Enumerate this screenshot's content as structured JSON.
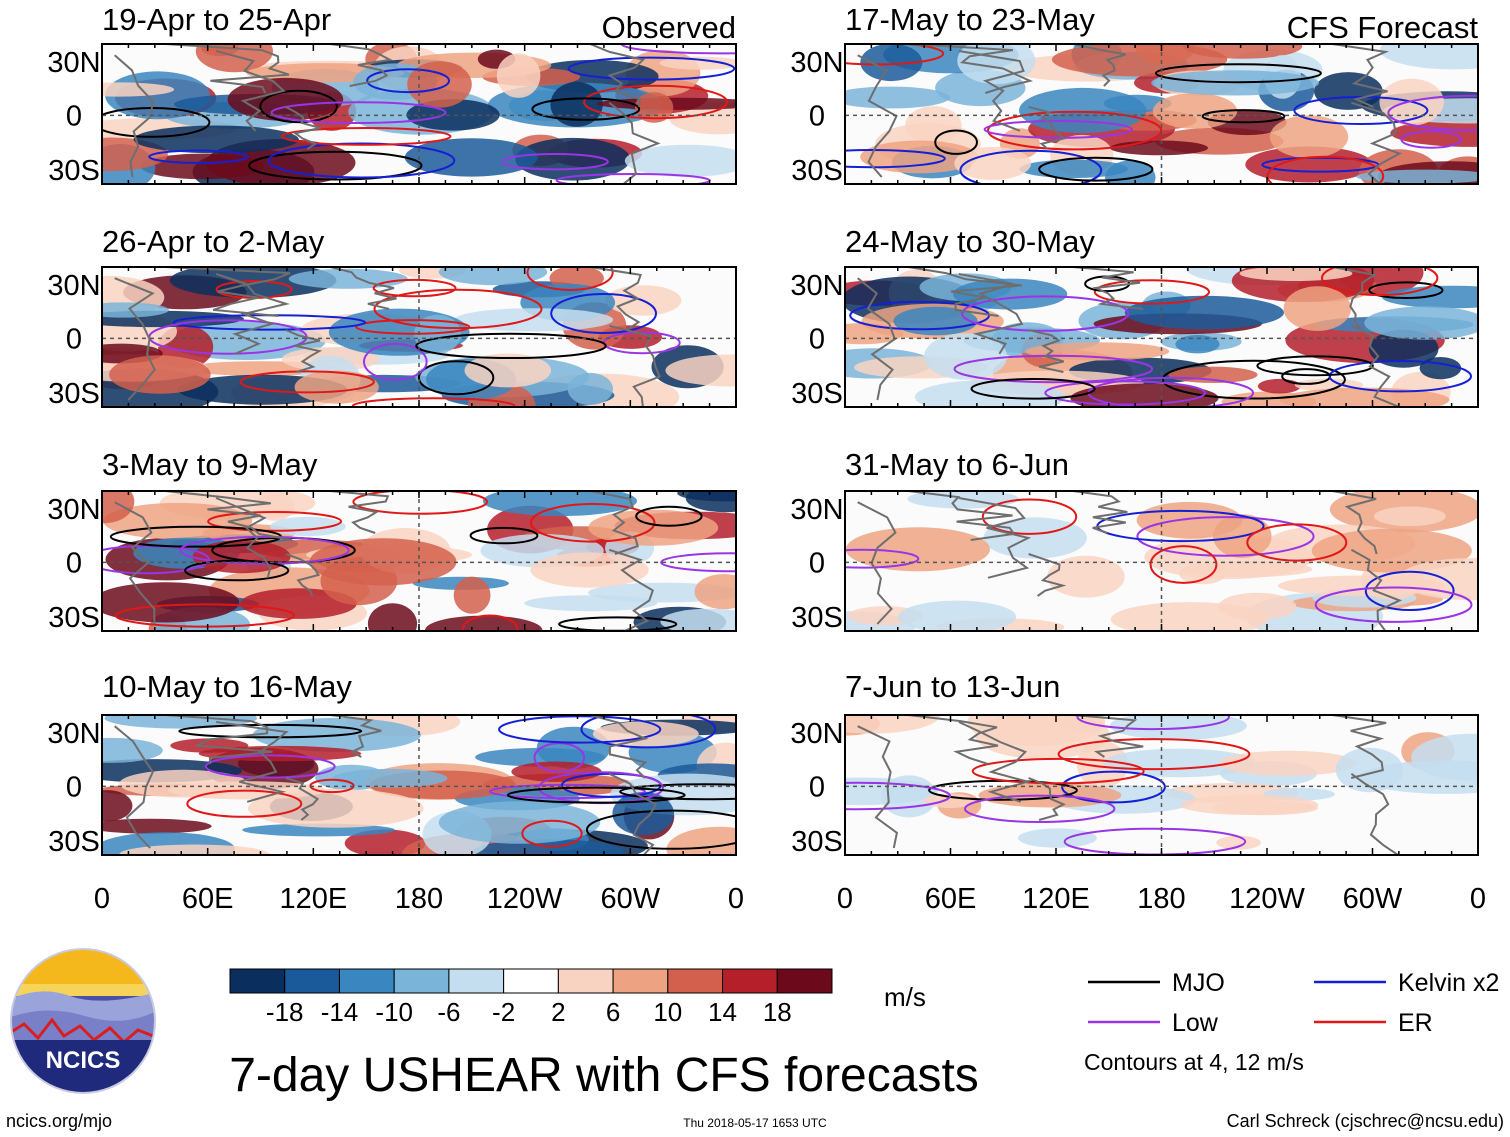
{
  "chart_data": {
    "type": "heatmap",
    "title": "7-day USHEAR with CFS forecasts",
    "variable": "USHEAR",
    "units": "m/s",
    "contour_note": "Contours at 4, 12 m/s",
    "columns": [
      {
        "label": "Observed",
        "panels": [
          {
            "period": "19-Apr to 25-Apr"
          },
          {
            "period": "26-Apr to 2-May"
          },
          {
            "period": "3-May to 9-May"
          },
          {
            "period": "10-May to 16-May"
          }
        ]
      },
      {
        "label": "CFS Forecast",
        "panels": [
          {
            "period": "17-May to 23-May"
          },
          {
            "period": "24-May to 30-May"
          },
          {
            "period": "31-May to 6-Jun"
          },
          {
            "period": "7-Jun to 13-Jun"
          }
        ]
      }
    ],
    "y_ticks": [
      "30N",
      "0",
      "30S"
    ],
    "x_ticks": [
      "0",
      "60E",
      "120E",
      "180",
      "120W",
      "60W",
      "0"
    ],
    "colorbar": {
      "levels": [
        "-18",
        "-14",
        "-10",
        "-6",
        "-2",
        "2",
        "6",
        "10",
        "14",
        "18"
      ],
      "colors": [
        "#0a2f5e",
        "#1b5a9a",
        "#3a86c0",
        "#7ab4d9",
        "#c4def0",
        "#ffffff",
        "#f9d3c2",
        "#eda382",
        "#d3604c",
        "#b41f2a",
        "#6c0a1c"
      ]
    },
    "legend": [
      {
        "label": "MJO",
        "color": "#000000"
      },
      {
        "label": "Kelvin x2",
        "color": "#1520d4"
      },
      {
        "label": "Low",
        "color": "#9a35e6"
      },
      {
        "label": "ER",
        "color": "#e01818"
      }
    ]
  },
  "footer": {
    "org": "NCICS",
    "url": "ncics.org/mjo",
    "timestamp": "Thu 2018-05-17 1653 UTC",
    "author": "Carl Schreck (cjschrec@ncsu.edu)"
  }
}
